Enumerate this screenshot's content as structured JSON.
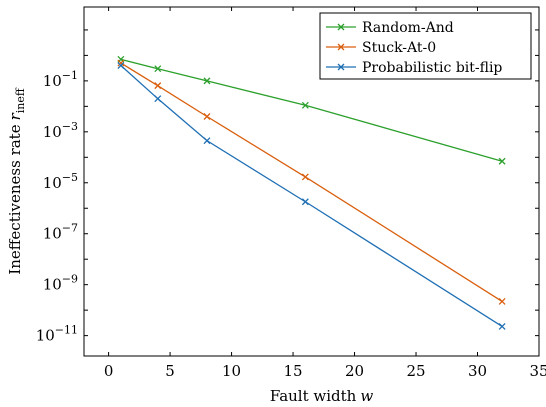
{
  "chart_data": {
    "type": "line",
    "xlabel": "Fault width",
    "xlabel_var": "w",
    "ylabel": "Ineffectiveness rate",
    "ylabel_var": "r",
    "ylabel_sub": "ineff",
    "xlim": [
      -2,
      35
    ],
    "ylim_log10": [
      -11.8,
      1.9
    ],
    "yscale": "log",
    "grid": false,
    "legend_position": "top-right",
    "x_ticks": [
      0,
      5,
      10,
      15,
      20,
      25,
      30,
      35
    ],
    "y_tick_exponents": [
      -1,
      -3,
      -5,
      -7,
      -9,
      -11
    ],
    "y_tick_base": "10",
    "series": [
      {
        "name": "Random-And",
        "color": "#2ca02c",
        "x": [
          1,
          4,
          8,
          16,
          32
        ],
        "y": [
          0.7,
          0.3,
          0.1,
          0.011,
          7e-05
        ]
      },
      {
        "name": "Stuck-At-0",
        "color": "#d95f0e",
        "x": [
          1,
          4,
          8,
          16,
          32
        ],
        "y": [
          0.5,
          0.065,
          0.004,
          1.7e-05,
          2.2e-10
        ]
      },
      {
        "name": "Probabilistic bit-flip",
        "color": "#1f6fb4",
        "x": [
          1,
          4,
          8,
          16,
          32
        ],
        "y": [
          0.4,
          0.02,
          0.00045,
          1.8e-06,
          2.3e-11
        ]
      }
    ]
  }
}
